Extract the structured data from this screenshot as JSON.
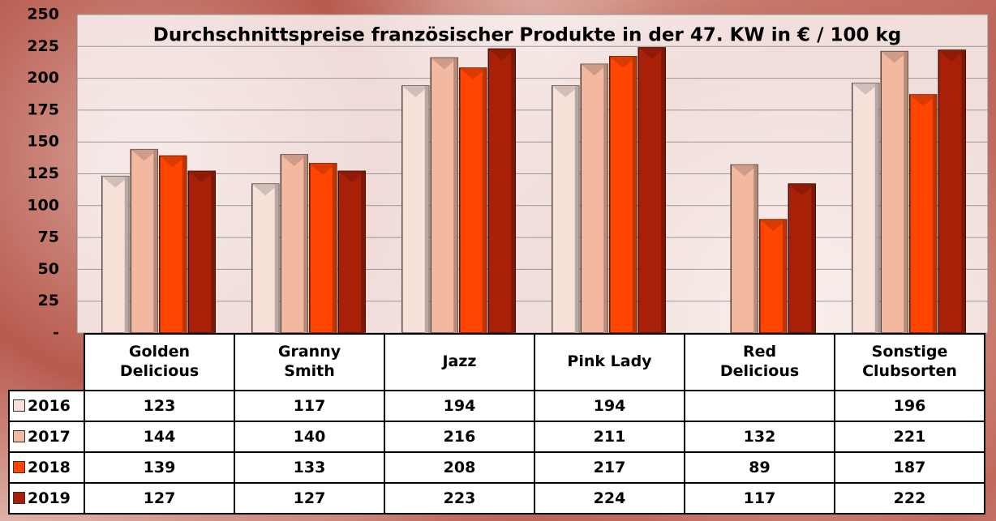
{
  "chart_data": {
    "type": "bar",
    "title": "Durchschnittspreise französischer Produkte in der 47. KW in € / 100 kg",
    "categories": [
      "Golden Delicious",
      "Granny Smith",
      "Jazz",
      "Pink Lady",
      "Red Delicious",
      "Sonstige Clubsorten"
    ],
    "series": [
      {
        "name": "2016",
        "color": "#f7e0d8",
        "values": [
          123,
          117,
          194,
          194,
          null,
          196
        ]
      },
      {
        "name": "2017",
        "color": "#f2b8a0",
        "values": [
          144,
          140,
          216,
          211,
          132,
          221
        ]
      },
      {
        "name": "2018",
        "color": "#ff4500",
        "values": [
          139,
          133,
          208,
          217,
          89,
          187
        ]
      },
      {
        "name": "2019",
        "color": "#a82008",
        "values": [
          127,
          127,
          223,
          224,
          117,
          222
        ]
      }
    ],
    "ylim": [
      0,
      250
    ],
    "yticks": [
      {
        "value": 0,
        "label": "-"
      },
      25,
      50,
      75,
      100,
      125,
      150,
      175,
      200,
      225,
      250
    ],
    "grid": true
  }
}
